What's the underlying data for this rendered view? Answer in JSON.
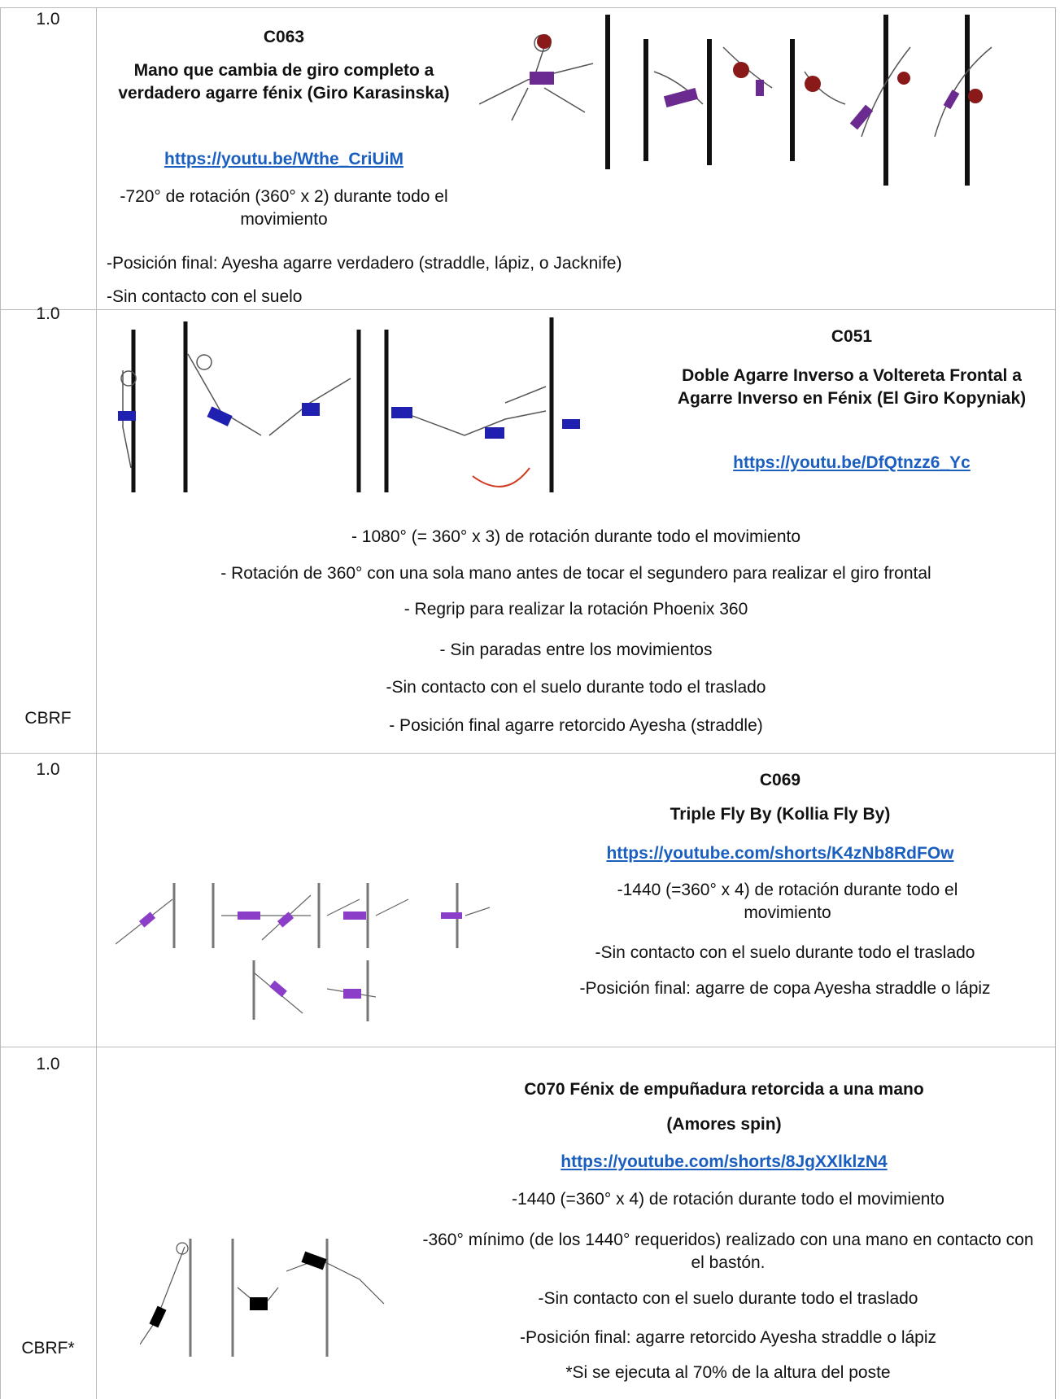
{
  "table": {
    "rows": [
      {
        "value": "1.0",
        "code": "C063",
        "title": "Mano que cambia de giro completo a verdadero agarre fénix (Giro Karasinska)",
        "link": "https://youtu.be/Wthe_CriUiM",
        "notes": [
          "-720° de rotación (360° x 2) durante todo el movimiento",
          "-Posición final: Ayesha agarre verdadero (straddle, lápiz, o Jacknife)",
          "-Sin contacto con el suelo"
        ]
      },
      {
        "value": "1.0",
        "tag": "CBRF",
        "code": "C051",
        "title": "Doble Agarre Inverso a Voltereta Frontal a Agarre Inverso en Fénix (El Giro Kopyniak)",
        "link": "https://youtu.be/DfQtnzz6_Yc",
        "notes": [
          "- 1080° (= 360° x 3) de rotación durante todo el movimiento",
          "- Rotación de 360° con una sola mano antes de tocar el segundero para realizar el giro frontal",
          "- Regrip para realizar la rotación Phoenix 360",
          "- Sin paradas entre los movimientos",
          "-Sin contacto con el suelo durante todo el traslado",
          "- Posición final agarre retorcido Ayesha (straddle)"
        ]
      },
      {
        "value": "1.0",
        "code": "C069",
        "title": "Triple Fly By (Kollia Fly By)",
        "link": "https://youtube.com/shorts/K4zNb8RdFOw",
        "notes": [
          "-1440 (=360° x 4) de rotación durante todo el movimiento",
          "-Sin contacto con el suelo durante todo el traslado",
          "-Posición final: agarre de copa Ayesha straddle o lápiz"
        ]
      },
      {
        "value": "1.0",
        "tag": "CBRF*",
        "title": "C070 Fénix de empuñadura retorcida a una mano",
        "subtitle": "(Amores spin)",
        "link": "https://youtube.com/shorts/8JgXXlklzN4",
        "notes": [
          "-1440 (=360° x 4) de rotación durante todo el movimiento",
          "-360° mínimo (de los 1440° requeridos) realizado con una mano en contacto con el bastón.",
          "-Sin contacto con el suelo durante todo el traslado",
          "-Posición final: agarre retorcido Ayesha straddle o lápiz",
          "*Si se ejecuta al 70% de la altura del poste"
        ]
      }
    ]
  }
}
